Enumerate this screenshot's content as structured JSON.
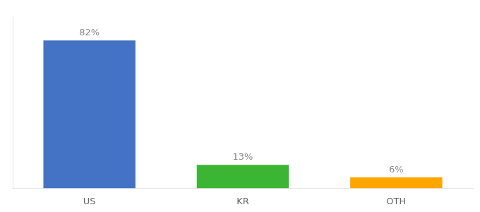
{
  "chart_data": {
    "type": "bar",
    "categories": [
      "US",
      "KR",
      "OTH"
    ],
    "values": [
      82,
      13,
      6
    ],
    "colors": [
      "#4472C4",
      "#3CB534",
      "#FFA500"
    ],
    "data_labels": true,
    "value_labels": [
      "82%",
      "13%",
      "6%"
    ],
    "ylim": [
      0,
      95
    ],
    "grid": false,
    "tick_labels": "x"
  }
}
